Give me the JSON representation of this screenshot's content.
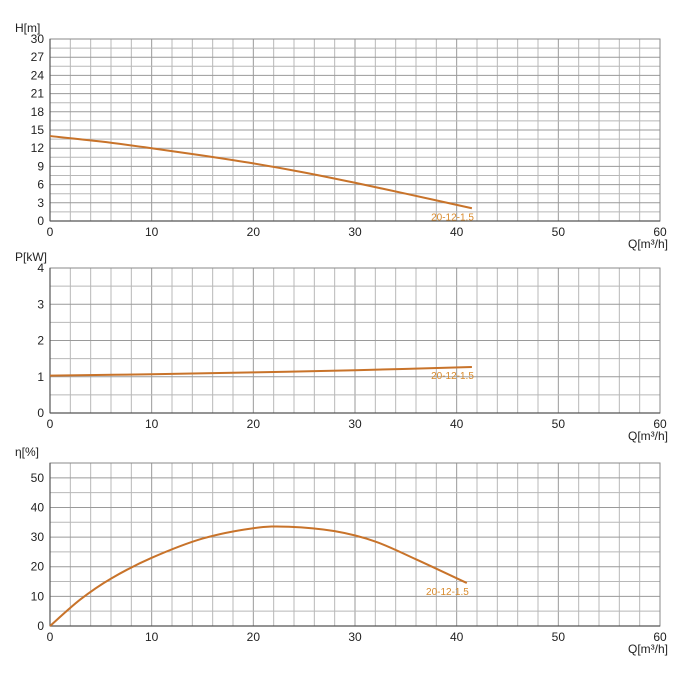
{
  "chart_data": [
    {
      "type": "line",
      "ylabel": "H[m]",
      "xlabel": "Q[m³/h]",
      "xlim": [
        0,
        60
      ],
      "ylim": [
        0,
        30
      ],
      "x_ticks": [
        0,
        10,
        20,
        30,
        40,
        50,
        60
      ],
      "y_ticks": [
        0,
        3,
        6,
        9,
        12,
        15,
        18,
        21,
        24,
        27,
        30
      ],
      "grid": true,
      "series": [
        {
          "name": "20-12-1.5",
          "color": "#c8732a",
          "x": [
            0,
            5,
            10,
            15,
            20,
            25,
            30,
            35,
            41.5
          ],
          "y": [
            14.0,
            13.1,
            12.0,
            10.8,
            9.5,
            8.0,
            6.3,
            4.5,
            2.1
          ]
        }
      ]
    },
    {
      "type": "line",
      "ylabel": "P[kW]",
      "xlabel": "Q[m³/h]",
      "xlim": [
        0,
        60
      ],
      "ylim": [
        0,
        4
      ],
      "x_ticks": [
        0,
        10,
        20,
        30,
        40,
        50,
        60
      ],
      "y_ticks": [
        0,
        1,
        2,
        3,
        4
      ],
      "grid": true,
      "series": [
        {
          "name": "20-12-1.5",
          "color": "#c8732a",
          "x": [
            0,
            10,
            20,
            30,
            41.5
          ],
          "y": [
            1.03,
            1.07,
            1.12,
            1.18,
            1.27
          ]
        }
      ]
    },
    {
      "type": "line",
      "ylabel": "η[%]",
      "xlabel": "Q[m³/h]",
      "xlim": [
        0,
        60
      ],
      "ylim": [
        0,
        55
      ],
      "x_ticks": [
        0,
        10,
        20,
        30,
        40,
        50,
        60
      ],
      "y_ticks": [
        0,
        10,
        20,
        30,
        40,
        50
      ],
      "grid": true,
      "series": [
        {
          "name": "20-12-1.5",
          "color": "#c8732a",
          "x": [
            0,
            3,
            6,
            10,
            15,
            20,
            23.5,
            28,
            32,
            36,
            41
          ],
          "y": [
            0,
            9,
            16,
            23,
            29.5,
            33,
            33.5,
            32,
            28.5,
            22.5,
            14.5
          ]
        }
      ]
    }
  ]
}
